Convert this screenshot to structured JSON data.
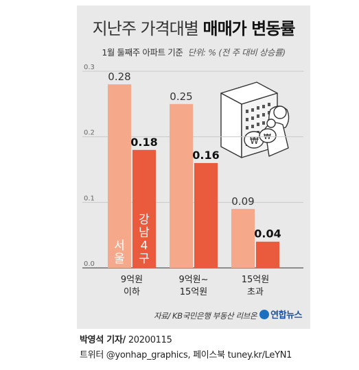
{
  "title_light": "지난주 가격대별",
  "title_bold": "매매가 변동률",
  "subtitle": "1월 둘째주 아파트 기준",
  "unit_note": "단위: % (전 주 대비 상승률)",
  "source": "자료/ KB국민은행 부동산 리브온",
  "logo_text": "연합뉴스",
  "byline_name": "박영석 기자/",
  "byline_date": "20200115",
  "social": "트위터 @yonhap_graphics, 페이스북 tuney.kr/LeYN1",
  "chart_data": {
    "type": "bar",
    "title": "지난주 가격대별 매매가 변동률",
    "subtitle": "1월 둘째주 아파트 기준",
    "ylabel": "단위: % (전 주 대비 상승률)",
    "ylim": [
      0,
      0.3
    ],
    "yticks": [
      "0.3",
      "0.2",
      "0.1",
      "0.0"
    ],
    "categories": [
      {
        "line1": "9억원",
        "line2": "이하"
      },
      {
        "line1": "9억원~",
        "line2": "15억원"
      },
      {
        "line1": "15억원",
        "line2": "초과"
      }
    ],
    "series": [
      {
        "name": "서울",
        "color": "#f5a98a",
        "values": [
          0.28,
          0.25,
          0.09
        ],
        "labels": [
          "0.28",
          "0.25",
          "0.09"
        ]
      },
      {
        "name": "강남4구",
        "color": "#e95b3c",
        "values": [
          0.18,
          0.16,
          0.04
        ],
        "labels": [
          "0.18",
          "0.16",
          "0.04"
        ]
      }
    ],
    "legend": "inside-bars",
    "grid": true
  }
}
